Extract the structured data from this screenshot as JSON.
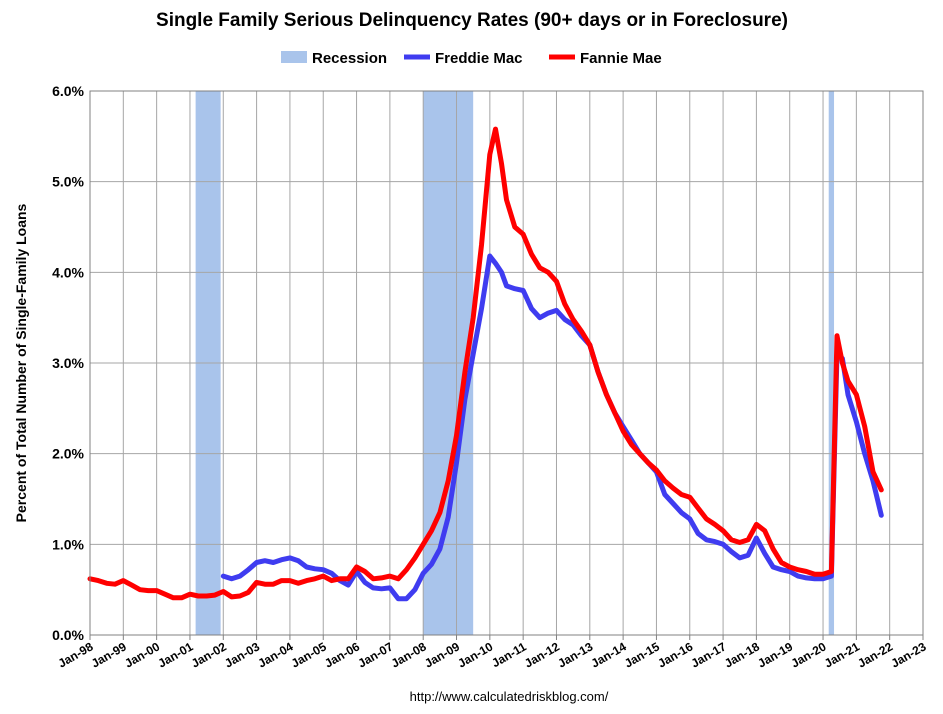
{
  "chart_data": {
    "type": "line",
    "title": "Single Family Serious Delinquency Rates (90+ days or in Foreclosure)",
    "ylabel": "Percent of Total Number of Single-Family Loans",
    "xlabel": "",
    "source": "http://www.calculatedriskblog.com/",
    "xlim": [
      1998.0,
      2023.0
    ],
    "ylim": [
      0,
      6.0
    ],
    "y_ticks": [
      0,
      1,
      2,
      3,
      4,
      5,
      6
    ],
    "y_tick_labels": [
      "0.0%",
      "1.0%",
      "2.0%",
      "3.0%",
      "4.0%",
      "5.0%",
      "6.0%"
    ],
    "x_tick_labels": [
      "Jan-98",
      "Jan-99",
      "Jan-00",
      "Jan-01",
      "Jan-02",
      "Jan-03",
      "Jan-04",
      "Jan-05",
      "Jan-06",
      "Jan-07",
      "Jan-08",
      "Jan-09",
      "Jan-10",
      "Jan-11",
      "Jan-12",
      "Jan-13",
      "Jan-14",
      "Jan-15",
      "Jan-16",
      "Jan-17",
      "Jan-18",
      "Jan-19",
      "Jan-20",
      "Jan-21",
      "Jan-22",
      "Jan-23"
    ],
    "legend": [
      "Recession",
      "Freddie Mac",
      "Fannie Mae"
    ],
    "colors": {
      "recession": "#a9c4eb",
      "freddie": "#3f3cf0",
      "fannie": "#ff0000",
      "grid": "#a6a6a6"
    },
    "recessions": [
      [
        2001.17,
        2001.92
      ],
      [
        2008.0,
        2009.5
      ],
      [
        2020.17,
        2020.33
      ]
    ],
    "series": [
      {
        "name": "Freddie Mac",
        "x": [
          2002.0,
          2002.25,
          2002.5,
          2002.75,
          2003.0,
          2003.25,
          2003.5,
          2003.75,
          2004.0,
          2004.25,
          2004.5,
          2004.75,
          2005.0,
          2005.25,
          2005.5,
          2005.75,
          2006.0,
          2006.25,
          2006.5,
          2006.75,
          2007.0,
          2007.25,
          2007.5,
          2007.75,
          2008.0,
          2008.25,
          2008.5,
          2008.75,
          2009.0,
          2009.25,
          2009.5,
          2009.75,
          2010.0,
          2010.17,
          2010.35,
          2010.5,
          2010.75,
          2011.0,
          2011.25,
          2011.5,
          2011.75,
          2012.0,
          2012.25,
          2012.5,
          2012.75,
          2013.0,
          2013.25,
          2013.5,
          2013.75,
          2014.0,
          2014.25,
          2014.5,
          2014.75,
          2015.0,
          2015.25,
          2015.5,
          2015.75,
          2016.0,
          2016.25,
          2016.5,
          2016.75,
          2017.0,
          2017.25,
          2017.5,
          2017.75,
          2018.0,
          2018.25,
          2018.5,
          2018.75,
          2019.0,
          2019.25,
          2019.5,
          2019.75,
          2020.0,
          2020.25,
          2020.42,
          2020.58,
          2020.75,
          2021.0,
          2021.25,
          2021.5,
          2021.75
        ],
        "values": [
          0.65,
          0.62,
          0.65,
          0.72,
          0.8,
          0.82,
          0.8,
          0.83,
          0.85,
          0.82,
          0.75,
          0.73,
          0.72,
          0.68,
          0.6,
          0.55,
          0.7,
          0.58,
          0.52,
          0.51,
          0.52,
          0.4,
          0.4,
          0.5,
          0.68,
          0.78,
          0.95,
          1.3,
          1.9,
          2.6,
          3.1,
          3.6,
          4.18,
          4.1,
          4.0,
          3.85,
          3.82,
          3.8,
          3.6,
          3.5,
          3.55,
          3.58,
          3.48,
          3.42,
          3.3,
          3.2,
          2.9,
          2.65,
          2.45,
          2.3,
          2.15,
          2.0,
          1.9,
          1.8,
          1.55,
          1.45,
          1.35,
          1.28,
          1.12,
          1.05,
          1.03,
          1.0,
          0.92,
          0.85,
          0.88,
          1.07,
          0.9,
          0.75,
          0.72,
          0.7,
          0.65,
          0.63,
          0.62,
          0.62,
          0.65,
          3.1,
          3.05,
          2.65,
          2.35,
          2.0,
          1.7,
          1.32
        ]
      },
      {
        "name": "Fannie Mae",
        "x": [
          1998.0,
          1998.25,
          1998.5,
          1998.75,
          1999.0,
          1999.25,
          1999.5,
          1999.75,
          2000.0,
          2000.25,
          2000.5,
          2000.75,
          2001.0,
          2001.25,
          2001.5,
          2001.75,
          2002.0,
          2002.25,
          2002.5,
          2002.75,
          2003.0,
          2003.25,
          2003.5,
          2003.75,
          2004.0,
          2004.25,
          2004.5,
          2004.75,
          2005.0,
          2005.25,
          2005.5,
          2005.75,
          2006.0,
          2006.25,
          2006.5,
          2006.75,
          2007.0,
          2007.25,
          2007.5,
          2007.75,
          2008.0,
          2008.25,
          2008.5,
          2008.75,
          2009.0,
          2009.25,
          2009.5,
          2009.75,
          2010.0,
          2010.17,
          2010.35,
          2010.5,
          2010.75,
          2011.0,
          2011.25,
          2011.5,
          2011.75,
          2012.0,
          2012.25,
          2012.5,
          2012.75,
          2013.0,
          2013.25,
          2013.5,
          2013.75,
          2014.0,
          2014.25,
          2014.5,
          2014.75,
          2015.0,
          2015.25,
          2015.5,
          2015.75,
          2016.0,
          2016.25,
          2016.5,
          2016.75,
          2017.0,
          2017.25,
          2017.5,
          2017.75,
          2018.0,
          2018.25,
          2018.5,
          2018.75,
          2019.0,
          2019.25,
          2019.5,
          2019.75,
          2020.0,
          2020.25,
          2020.42,
          2020.58,
          2020.75,
          2021.0,
          2021.25,
          2021.5,
          2021.75
        ],
        "values": [
          0.62,
          0.6,
          0.57,
          0.56,
          0.6,
          0.55,
          0.5,
          0.49,
          0.49,
          0.45,
          0.41,
          0.41,
          0.45,
          0.43,
          0.43,
          0.44,
          0.48,
          0.42,
          0.43,
          0.47,
          0.58,
          0.56,
          0.56,
          0.6,
          0.6,
          0.57,
          0.6,
          0.62,
          0.65,
          0.6,
          0.62,
          0.62,
          0.75,
          0.7,
          0.62,
          0.63,
          0.65,
          0.62,
          0.72,
          0.85,
          1.0,
          1.15,
          1.35,
          1.7,
          2.2,
          2.9,
          3.5,
          4.3,
          5.3,
          5.58,
          5.2,
          4.8,
          4.5,
          4.42,
          4.2,
          4.05,
          4.0,
          3.9,
          3.65,
          3.48,
          3.35,
          3.2,
          2.9,
          2.65,
          2.45,
          2.25,
          2.1,
          2.0,
          1.9,
          1.82,
          1.7,
          1.62,
          1.55,
          1.52,
          1.4,
          1.28,
          1.22,
          1.15,
          1.05,
          1.02,
          1.05,
          1.22,
          1.15,
          0.95,
          0.8,
          0.75,
          0.72,
          0.7,
          0.67,
          0.67,
          0.7,
          3.3,
          3.0,
          2.8,
          2.65,
          2.3,
          1.8,
          1.6
        ]
      }
    ]
  }
}
